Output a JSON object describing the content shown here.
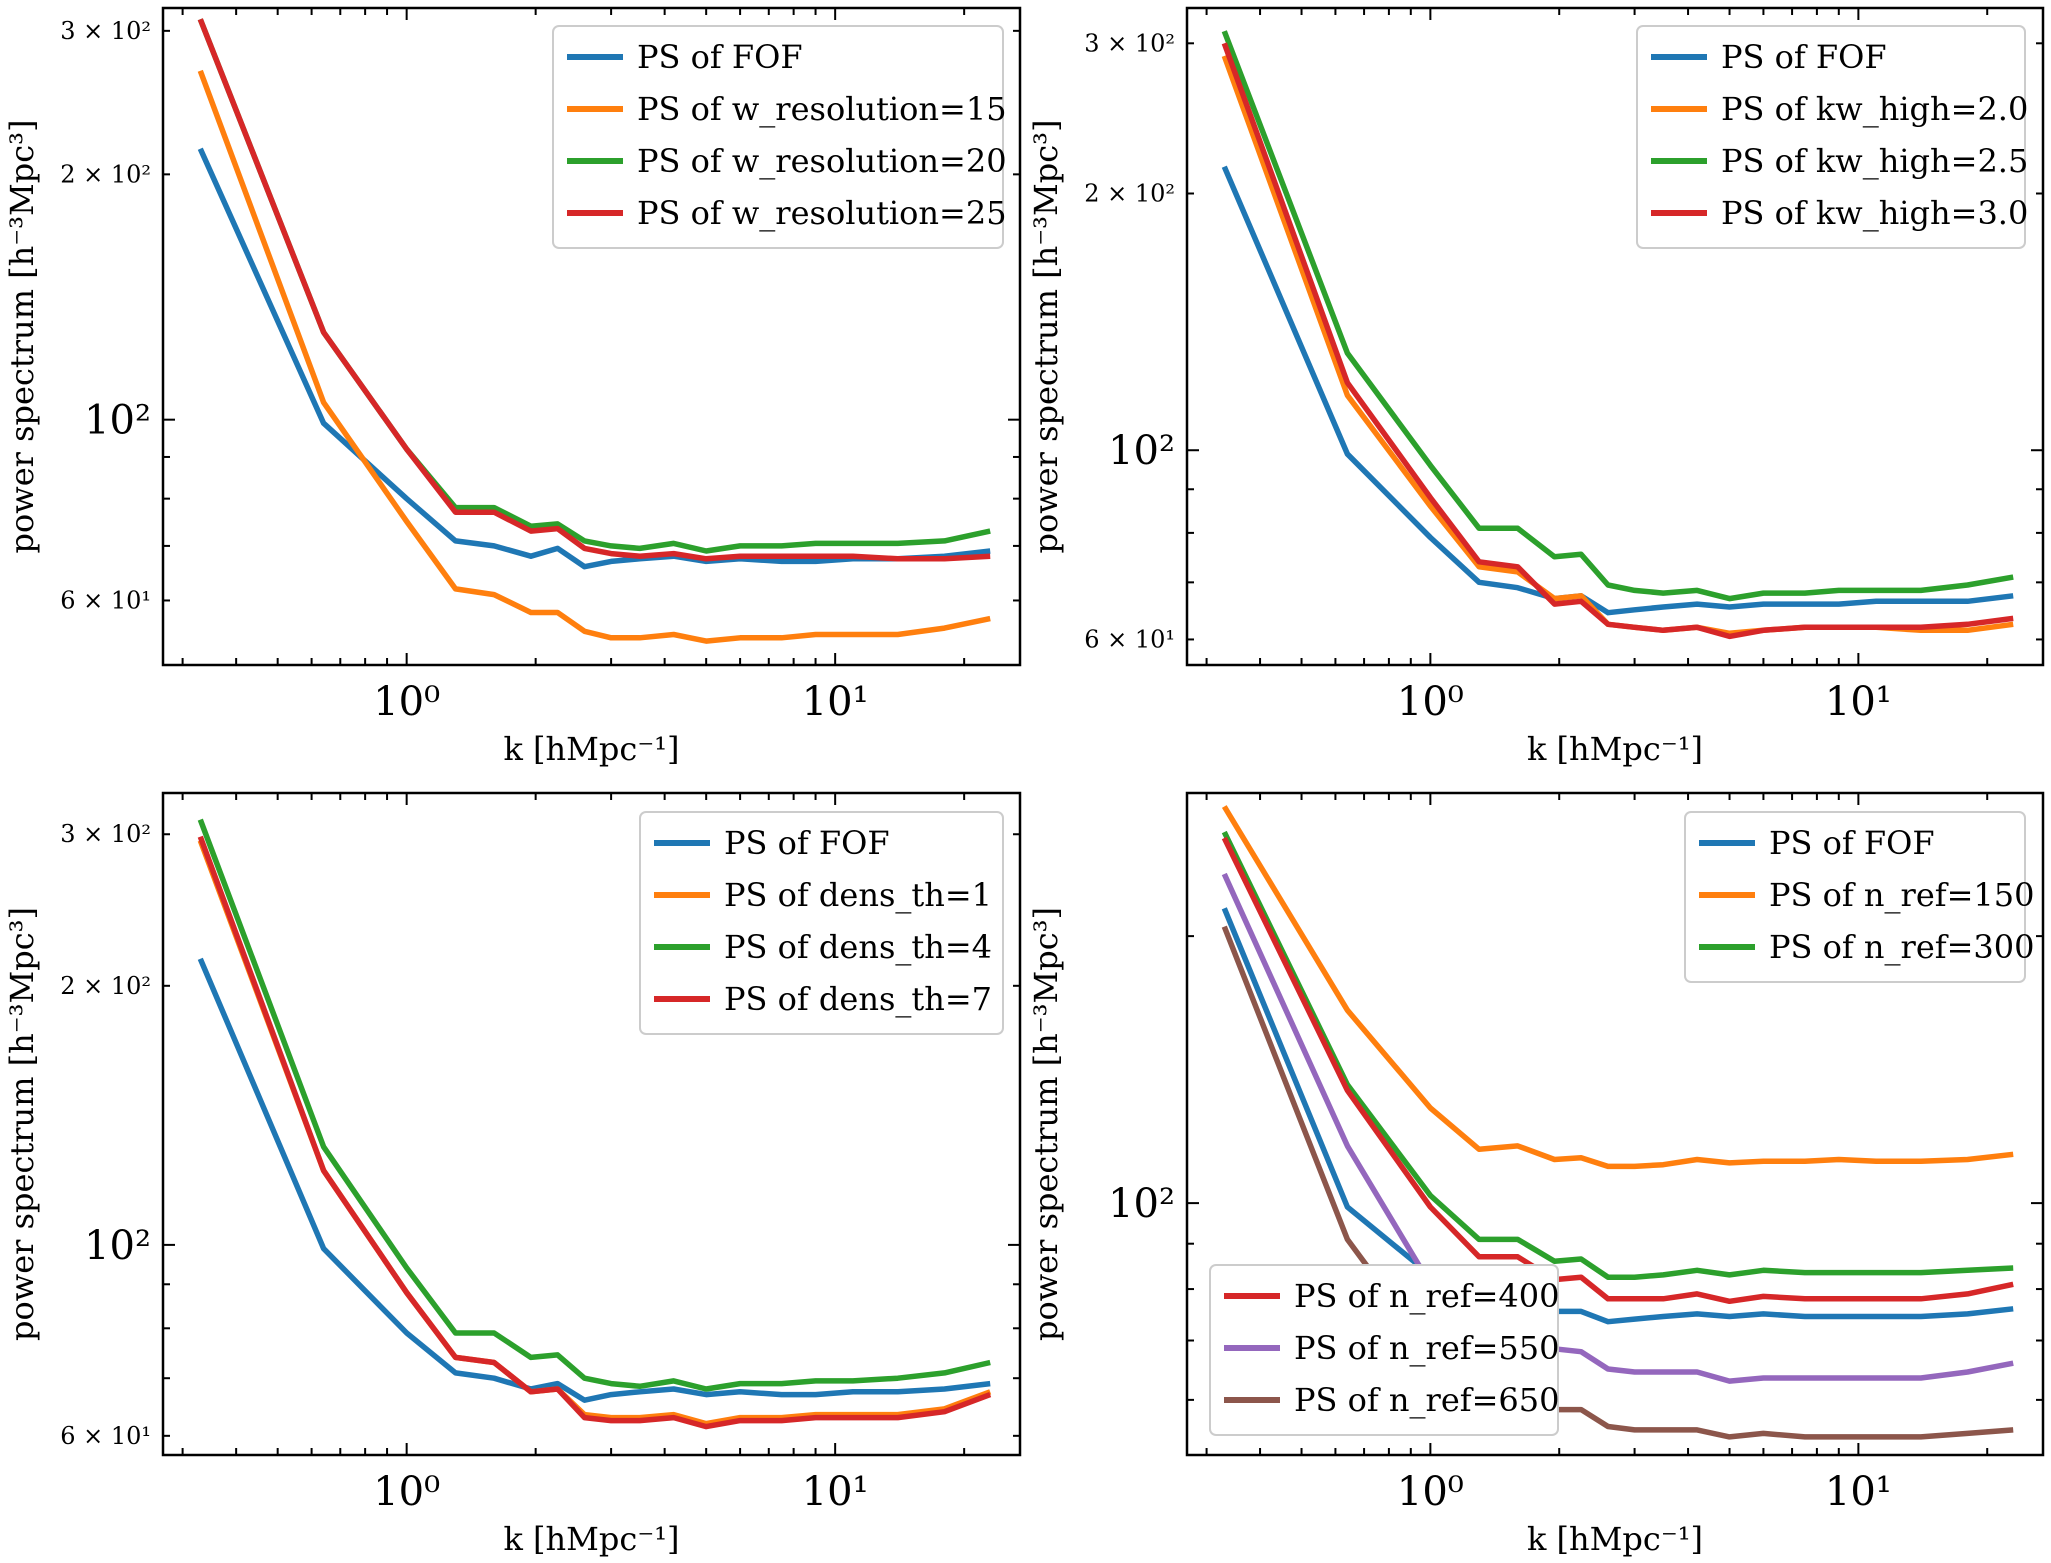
{
  "chart_data": [
    {
      "type": "line",
      "xlabel": "k [hMpc⁻¹]",
      "ylabel": "power spectrum [h⁻³Mpc³]",
      "xscale": "log",
      "yscale": "log",
      "xlim": [
        0.27,
        27
      ],
      "ylim": [
        50,
        320
      ],
      "yticks": [
        {
          "value": 60,
          "label": "6 × 10¹"
        },
        {
          "value": 100,
          "label": "10²"
        },
        {
          "value": 200,
          "label": "2 × 10²"
        },
        {
          "value": 300,
          "label": "3 × 10²"
        }
      ],
      "xticks": [
        {
          "value": 1,
          "label": "10⁰"
        },
        {
          "value": 10,
          "label": "10¹"
        }
      ],
      "legend_position": "top-right",
      "x": [
        0.33,
        0.64,
        1.0,
        1.3,
        1.6,
        1.95,
        2.25,
        2.6,
        3.0,
        3.5,
        4.2,
        5.0,
        6.0,
        7.5,
        9.0,
        11,
        14,
        18,
        23
      ],
      "series": [
        {
          "name": "PS of FOF",
          "color": "#1f77b4",
          "values": [
            215,
            99,
            80,
            71,
            70,
            68,
            69.5,
            66,
            67,
            67.5,
            68,
            67,
            67.5,
            67,
            67,
            67.5,
            67.5,
            68,
            69
          ]
        },
        {
          "name": "PS of w_resolution=15",
          "color": "#ff7f0e",
          "values": [
            268,
            105,
            75,
            62,
            61,
            58,
            58,
            55,
            54,
            54,
            54.5,
            53.5,
            54,
            54,
            54.5,
            54.5,
            54.5,
            55.5,
            57
          ]
        },
        {
          "name": "PS of w_resolution=20",
          "color": "#2ca02c",
          "values": [
            310,
            128,
            92,
            78,
            78,
            74,
            74.5,
            71,
            70,
            69.5,
            70.5,
            69,
            70,
            70,
            70.5,
            70.5,
            70.5,
            71,
            73
          ]
        },
        {
          "name": "PS of w_resolution=25",
          "color": "#d62728",
          "values": [
            310,
            128,
            92,
            77,
            77,
            73,
            73.5,
            69.5,
            68.5,
            68,
            68.5,
            67.5,
            68,
            68,
            68,
            68,
            67.5,
            67.5,
            68
          ]
        }
      ]
    },
    {
      "type": "line",
      "xlabel": "k [hMpc⁻¹]",
      "ylabel": "power spectrum [h⁻³Mpc³]",
      "xscale": "log",
      "yscale": "log",
      "xlim": [
        0.27,
        27
      ],
      "ylim": [
        56,
        330
      ],
      "yticks": [
        {
          "value": 60,
          "label": "6 × 10¹"
        },
        {
          "value": 100,
          "label": "10²"
        },
        {
          "value": 200,
          "label": "2 × 10²"
        },
        {
          "value": 300,
          "label": "3 × 10²"
        }
      ],
      "xticks": [
        {
          "value": 1,
          "label": "10⁰"
        },
        {
          "value": 10,
          "label": "10¹"
        }
      ],
      "legend_position": "top-right",
      "x": [
        0.33,
        0.64,
        1.0,
        1.3,
        1.6,
        1.95,
        2.25,
        2.6,
        3.0,
        3.5,
        4.2,
        5.0,
        6.0,
        7.5,
        9.0,
        11,
        14,
        18,
        23
      ],
      "series": [
        {
          "name": "PS of FOF",
          "color": "#1f77b4",
          "values": [
            215,
            99,
            79,
            70,
            69,
            67,
            67.5,
            64.5,
            65,
            65.5,
            66,
            65.5,
            66,
            66,
            66,
            66.5,
            66.5,
            66.5,
            67.5
          ]
        },
        {
          "name": "PS of kw_high=2.0",
          "color": "#ff7f0e",
          "values": [
            290,
            116,
            86,
            73,
            72,
            67,
            67.5,
            62.5,
            62,
            61.5,
            62,
            61,
            61.5,
            62,
            62,
            62,
            61.5,
            61.5,
            62.5
          ]
        },
        {
          "name": "PS of kw_high=2.5",
          "color": "#2ca02c",
          "values": [
            310,
            130,
            96,
            81,
            81,
            75,
            75.5,
            69.5,
            68.5,
            68,
            68.5,
            67,
            68,
            68,
            68.5,
            68.5,
            68.5,
            69.5,
            71
          ]
        },
        {
          "name": "PS of kw_high=3.0",
          "color": "#d62728",
          "values": [
            300,
            120,
            88,
            74,
            73,
            66,
            66.5,
            62.5,
            62,
            61.5,
            62,
            60.5,
            61.5,
            62,
            62,
            62,
            62,
            62.5,
            63.5
          ]
        }
      ]
    },
    {
      "type": "line",
      "xlabel": "k [hMpc⁻¹]",
      "ylabel": "power spectrum [h⁻³Mpc³]",
      "xscale": "log",
      "yscale": "log",
      "xlim": [
        0.27,
        27
      ],
      "ylim": [
        57,
        335
      ],
      "yticks": [
        {
          "value": 60,
          "label": "6 × 10¹"
        },
        {
          "value": 100,
          "label": "10²"
        },
        {
          "value": 200,
          "label": "2 × 10²"
        },
        {
          "value": 300,
          "label": "3 × 10²"
        }
      ],
      "xticks": [
        {
          "value": 1,
          "label": "10⁰"
        },
        {
          "value": 10,
          "label": "10¹"
        }
      ],
      "legend_position": "top-right",
      "x": [
        0.33,
        0.64,
        1.0,
        1.3,
        1.6,
        1.95,
        2.25,
        2.6,
        3.0,
        3.5,
        4.2,
        5.0,
        6.0,
        7.5,
        9.0,
        11,
        14,
        18,
        23
      ],
      "series": [
        {
          "name": "PS of FOF",
          "color": "#1f77b4",
          "values": [
            215,
            99,
            79,
            71,
            70,
            68,
            69,
            66,
            67,
            67.5,
            68,
            67,
            67.5,
            67,
            67,
            67.5,
            67.5,
            68,
            69
          ]
        },
        {
          "name": "PS of dens_th=1",
          "color": "#ff7f0e",
          "values": [
            295,
            122,
            88,
            74,
            73,
            67.5,
            68,
            63.5,
            63,
            63,
            63.5,
            62,
            63,
            63,
            63.5,
            63.5,
            63.5,
            64.5,
            67.5
          ]
        },
        {
          "name": "PS of dens_th=4",
          "color": "#2ca02c",
          "values": [
            312,
            130,
            94,
            79,
            79,
            74,
            74.5,
            70,
            69,
            68.5,
            69.5,
            68,
            69,
            69,
            69.5,
            69.5,
            70,
            71,
            73
          ]
        },
        {
          "name": "PS of dens_th=7",
          "color": "#d62728",
          "values": [
            298,
            122,
            88,
            74,
            73,
            67.5,
            68,
            63,
            62.5,
            62.5,
            63,
            61.5,
            62.5,
            62.5,
            63,
            63,
            63,
            64,
            67
          ]
        }
      ]
    },
    {
      "type": "line",
      "xlabel": "k [hMpc⁻¹]",
      "ylabel": "power spectrum [h⁻³Mpc³]",
      "xscale": "log",
      "yscale": "log",
      "xlim": [
        0.27,
        27
      ],
      "ylim": [
        52,
        290
      ],
      "yticks": [
        {
          "value": 100,
          "label": "10²"
        }
      ],
      "xticks": [
        {
          "value": 1,
          "label": "10⁰"
        },
        {
          "value": 10,
          "label": "10¹"
        }
      ],
      "legend_position": "top-right",
      "legend2_position": "lower-left",
      "x": [
        0.33,
        0.64,
        1.0,
        1.3,
        1.6,
        1.95,
        2.25,
        2.6,
        3.0,
        3.5,
        4.2,
        5.0,
        6.0,
        7.5,
        9.0,
        11,
        14,
        18,
        23
      ],
      "series": [
        {
          "name": "PS of FOF",
          "color": "#1f77b4",
          "values": [
            215,
            99,
            83,
            77,
            76.5,
            75.5,
            75.5,
            73.5,
            74,
            74.5,
            75,
            74.5,
            75,
            74.5,
            74.5,
            74.5,
            74.5,
            75,
            76
          ]
        },
        {
          "name": "PS of n_ref=150",
          "color": "#ff7f0e",
          "values": [
            280,
            165,
            128,
            115,
            116,
            112,
            112.5,
            110,
            110,
            110.5,
            112,
            111,
            111.5,
            111.5,
            112,
            111.5,
            111.5,
            112,
            113.5
          ]
        },
        {
          "name": "PS of n_ref=300",
          "color": "#2ca02c",
          "values": [
            262,
            136,
            102,
            91,
            91,
            86,
            86.5,
            82.5,
            82.5,
            83,
            84,
            83,
            84,
            83.5,
            83.5,
            83.5,
            83.5,
            84,
            84.5
          ]
        },
        {
          "name": "PS of n_ref=400",
          "color": "#d62728",
          "values": [
            258,
            134,
            99,
            87,
            87,
            82,
            82.5,
            78,
            78,
            78,
            79,
            77.5,
            78.5,
            78,
            78,
            78,
            78,
            79,
            81
          ]
        },
        {
          "name": "PS of n_ref=550",
          "color": "#9467bd",
          "values": [
            235,
            116,
            81,
            72.5,
            72,
            68.5,
            68,
            65,
            64.5,
            64.5,
            64.5,
            63,
            63.5,
            63.5,
            63.5,
            63.5,
            63.5,
            64.5,
            66
          ]
        },
        {
          "name": "PS of n_ref=650",
          "color": "#8c564b",
          "values": [
            205,
            91,
            68,
            61,
            60.5,
            58.5,
            58.5,
            56,
            55.5,
            55.5,
            55.5,
            54.5,
            55,
            54.5,
            54.5,
            54.5,
            54.5,
            55,
            55.5
          ]
        }
      ]
    }
  ]
}
